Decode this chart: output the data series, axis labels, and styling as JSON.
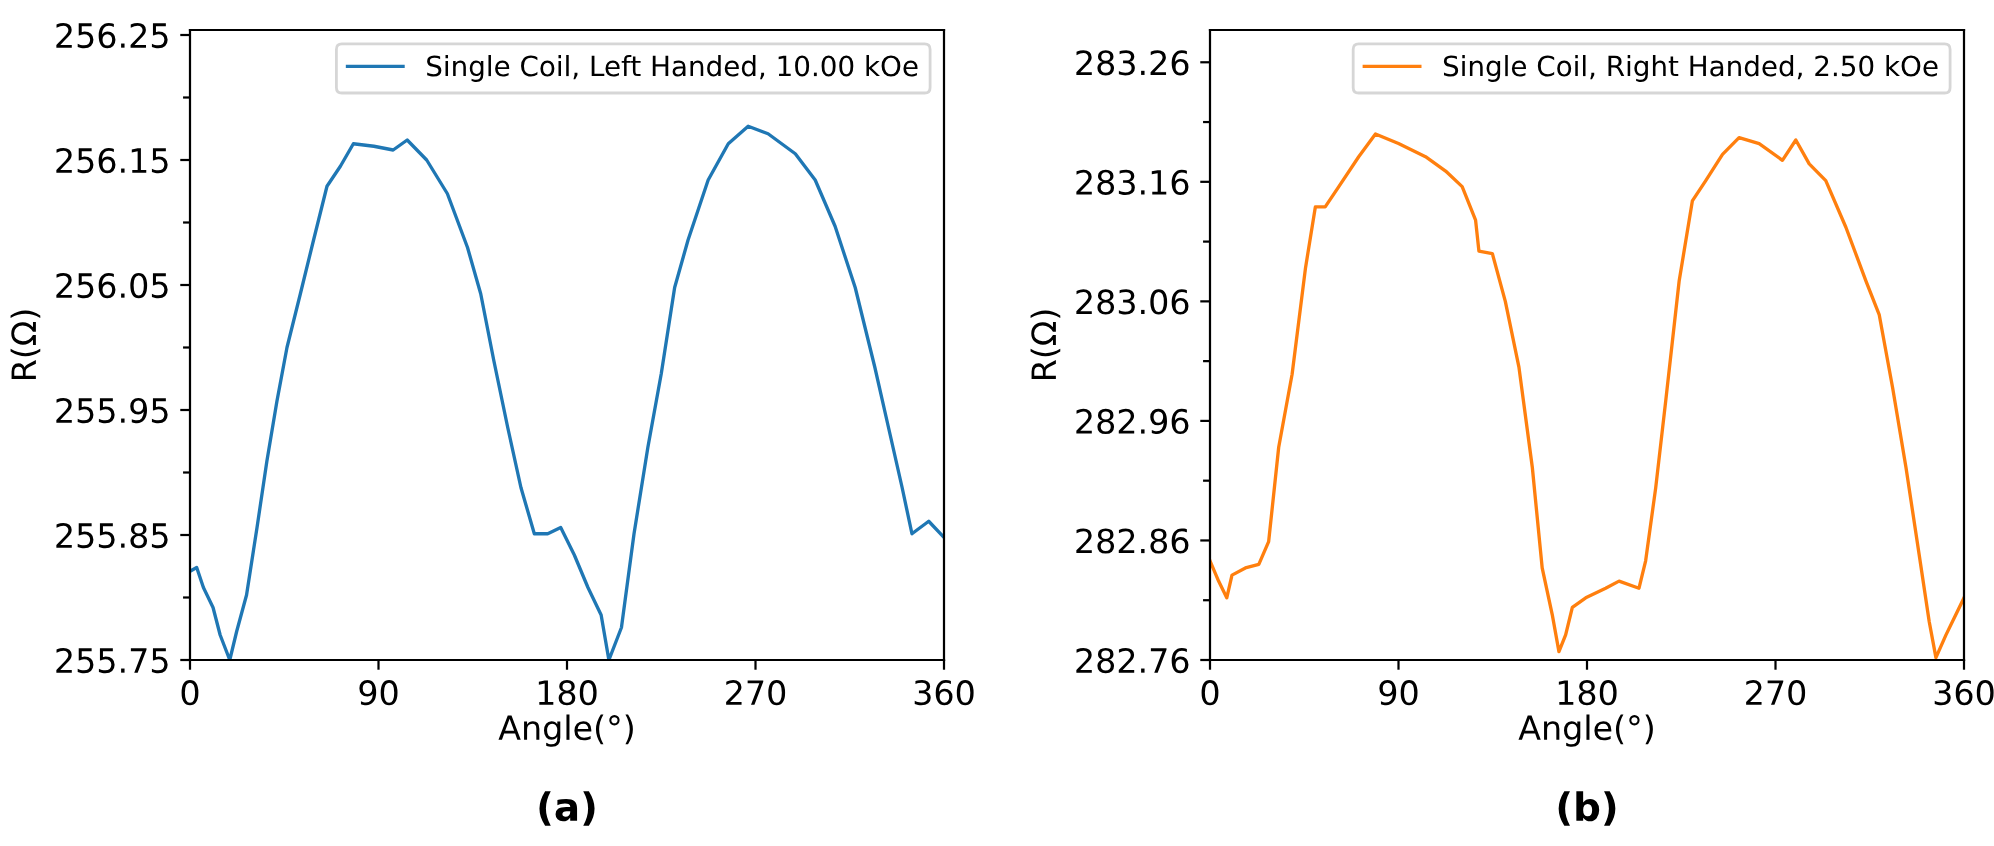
{
  "chart_data": [
    {
      "type": "line",
      "xlabel": "Angle(°)",
      "ylabel": "R(Ω)",
      "annotations": [
        "(a)"
      ],
      "legend": "top right",
      "grid": false,
      "xlim": [
        0,
        360
      ],
      "xticks": [
        0,
        90,
        180,
        270,
        360
      ],
      "ylim": [
        255.75,
        256.254
      ],
      "yticks": [
        255.75,
        {
          "value": 255.8,
          "label": null
        },
        255.85,
        {
          "value": 255.9,
          "label": null
        },
        255.95,
        {
          "value": 256.0,
          "label": null
        },
        256.05,
        {
          "value": 256.1,
          "label": null
        },
        256.15,
        {
          "value": 256.2,
          "label": null
        },
        256.25
      ],
      "series": [
        {
          "name": "Single Coil, Left Handed, 10.00 kOe",
          "color": "#1f77b4",
          "x": [
            0,
            3.2,
            6.4,
            11,
            14.4,
            19,
            22.3,
            27,
            32,
            36.7,
            41.5,
            46.3,
            52.7,
            59,
            65.4,
            71.8,
            78,
            87.8,
            97,
            103.7,
            113,
            122.9,
            132.5,
            138.8,
            145,
            151.7,
            158,
            164.4,
            170.8,
            177,
            183.5,
            190,
            196.3,
            200,
            206,
            212,
            218.6,
            225,
            231.4,
            237.8,
            247.4,
            257,
            266.5,
            276,
            289,
            298.5,
            308,
            317.6,
            327,
            333.5,
            340,
            344.7,
            352.7,
            360
          ],
          "values": [
            255.821,
            255.824,
            255.808,
            255.792,
            255.77,
            255.75,
            255.773,
            255.802,
            255.856,
            255.909,
            255.957,
            256.0,
            256.043,
            256.086,
            256.129,
            256.145,
            256.163,
            256.161,
            256.158,
            256.166,
            256.15,
            256.123,
            256.08,
            256.043,
            255.99,
            255.936,
            255.888,
            255.851,
            255.851,
            255.856,
            255.834,
            255.808,
            255.786,
            255.75,
            255.776,
            255.851,
            255.92,
            255.979,
            256.048,
            256.086,
            256.134,
            256.163,
            256.177,
            256.171,
            256.155,
            256.134,
            256.097,
            256.048,
            255.984,
            255.936,
            255.888,
            255.851,
            255.861,
            255.848
          ]
        }
      ]
    },
    {
      "type": "line",
      "xlabel": "Angle(°)",
      "ylabel": "R(Ω)",
      "annotations": [
        "(b)"
      ],
      "legend": "top right",
      "grid": false,
      "xlim": [
        0,
        360
      ],
      "xticks": [
        0,
        90,
        180,
        270,
        360
      ],
      "ylim": [
        282.76,
        283.287
      ],
      "yticks": [
        282.76,
        {
          "value": 282.81,
          "label": null
        },
        282.86,
        {
          "value": 282.91,
          "label": null
        },
        282.96,
        {
          "value": 283.01,
          "label": null
        },
        283.06,
        {
          "value": 283.11,
          "label": null
        },
        283.16,
        {
          "value": 283.21,
          "label": null
        },
        283.26
      ],
      "series": [
        {
          "name": "Single Coil, Right Handed, 2.50 kOe",
          "color": "#ff7f0e",
          "x": [
            0,
            4.1,
            8,
            10.5,
            16.9,
            23.3,
            28,
            32.8,
            39.2,
            45.6,
            50.3,
            55,
            61.5,
            71,
            79,
            90,
            102.9,
            112.5,
            120.4,
            126.8,
            128.4,
            134.8,
            141,
            147.5,
            153.9,
            158.6,
            163.4,
            166.6,
            169.8,
            173,
            179.4,
            188.9,
            195.3,
            204.8,
            208,
            212.8,
            217.6,
            224,
            230.3,
            236.7,
            244.7,
            252.6,
            262.2,
            273.3,
            279.7,
            286.1,
            294,
            303.6,
            313.2,
            319.5,
            325.9,
            332.3,
            338.6,
            343.4,
            346.6,
            351.4,
            360
          ],
          "values": [
            282.843,
            282.826,
            282.812,
            282.831,
            282.837,
            282.84,
            282.859,
            282.938,
            282.999,
            283.088,
            283.139,
            283.139,
            283.156,
            283.181,
            283.2,
            283.192,
            283.181,
            283.169,
            283.156,
            283.128,
            283.102,
            283.1,
            283.06,
            283.005,
            282.921,
            282.837,
            282.798,
            282.767,
            282.781,
            282.804,
            282.812,
            282.82,
            282.826,
            282.82,
            282.843,
            282.904,
            282.977,
            283.077,
            283.144,
            283.161,
            283.183,
            283.197,
            283.192,
            283.178,
            283.195,
            283.175,
            283.161,
            283.122,
            283.077,
            283.049,
            282.988,
            282.921,
            282.848,
            282.792,
            282.762,
            282.781,
            282.812
          ]
        }
      ]
    }
  ]
}
